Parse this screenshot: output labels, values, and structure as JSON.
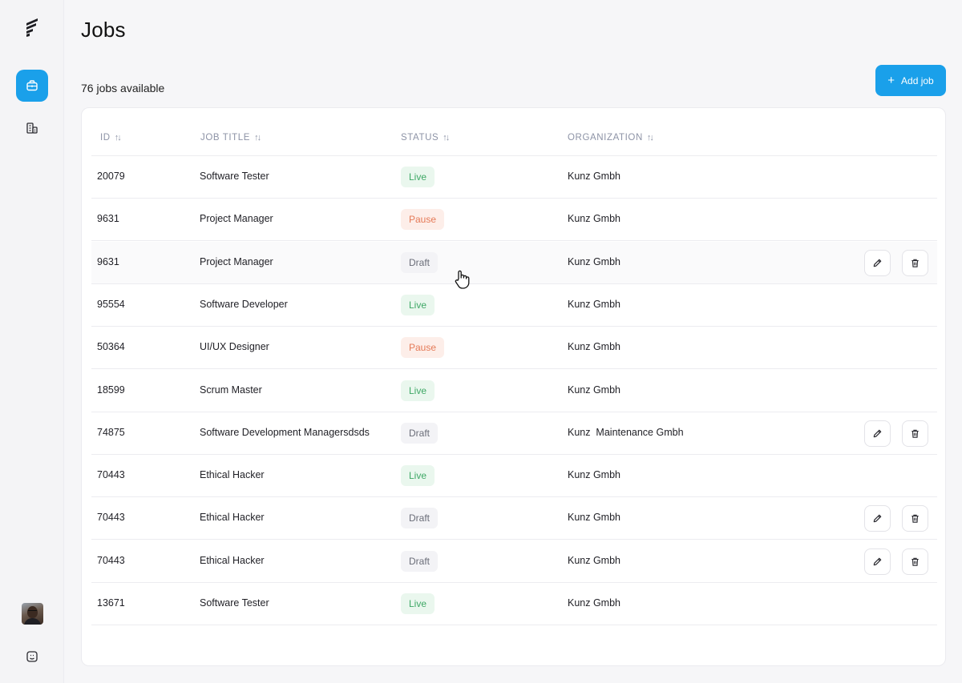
{
  "app": {
    "page_title": "Jobs",
    "job_count": "76 jobs available",
    "add_button_label": "Add job",
    "accent_color": "#1aa0ea"
  },
  "sidebar": {
    "items": [
      {
        "name": "jobs",
        "icon": "briefcase-icon",
        "active": true
      },
      {
        "name": "organizations",
        "icon": "building-icon",
        "active": false
      }
    ],
    "footer": [
      {
        "name": "avatar",
        "icon": "user-avatar"
      },
      {
        "name": "feedback",
        "icon": "smile-square-icon"
      }
    ]
  },
  "table": {
    "headers": {
      "id": "ID",
      "job_title": "JOB TITLE",
      "status": "STATUS",
      "organization": "ORGANIZATION"
    },
    "status_colors": {
      "Live": "#3fa866",
      "Pause": "#e57a57",
      "Draft": "#6a6d78"
    },
    "rows": [
      {
        "id": "20079",
        "title": "Software Tester",
        "status": "Live",
        "organization": "Kunz Gmbh",
        "actions": false
      },
      {
        "id": "9631",
        "title": "Project Manager",
        "status": "Pause",
        "organization": "Kunz Gmbh",
        "actions": false
      },
      {
        "id": "9631",
        "title": "Project Manager",
        "status": "Draft",
        "organization": "Kunz Gmbh",
        "actions": true
      },
      {
        "id": "95554",
        "title": "Software Developer",
        "status": "Live",
        "organization": "Kunz Gmbh",
        "actions": false
      },
      {
        "id": "50364",
        "title": "UI/UX Designer",
        "status": "Pause",
        "organization": "Kunz Gmbh",
        "actions": false
      },
      {
        "id": "18599",
        "title": "Scrum Master",
        "status": "Live",
        "organization": "Kunz Gmbh",
        "actions": false
      },
      {
        "id": "74875",
        "title": "Software Development Managersdsds",
        "status": "Draft",
        "organization": "Kunz  Maintenance Gmbh",
        "actions": true
      },
      {
        "id": "70443",
        "title": "Ethical Hacker",
        "status": "Live",
        "organization": "Kunz Gmbh",
        "actions": false
      },
      {
        "id": "70443",
        "title": "Ethical Hacker",
        "status": "Draft",
        "organization": "Kunz Gmbh",
        "actions": true
      },
      {
        "id": "70443",
        "title": "Ethical Hacker",
        "status": "Draft",
        "organization": "Kunz Gmbh",
        "actions": true
      },
      {
        "id": "13671",
        "title": "Software Tester",
        "status": "Live",
        "organization": "Kunz Gmbh",
        "actions": false
      }
    ]
  }
}
